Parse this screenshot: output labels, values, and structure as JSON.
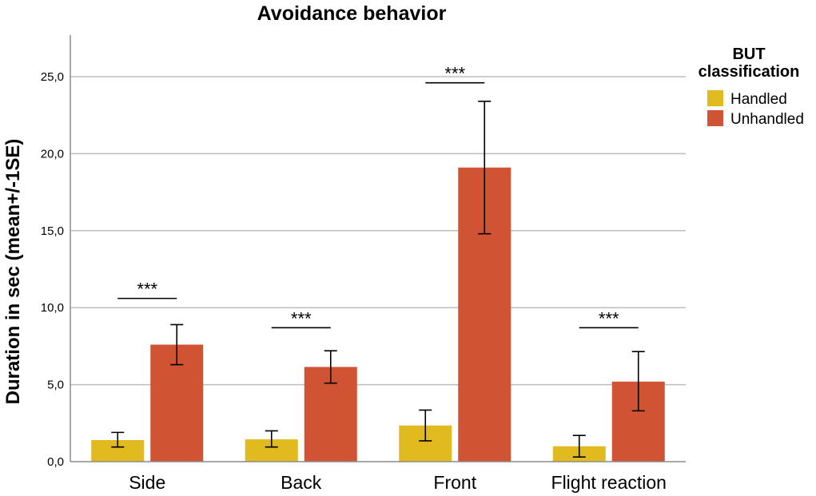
{
  "chart_data": {
    "type": "bar",
    "title": "Avoidance behavior",
    "xlabel": "",
    "ylabel": "Duration in sec (mean+/-1SE)",
    "ylim": [
      0,
      28
    ],
    "yticks": [
      {
        "value": 0,
        "label": "0,0"
      },
      {
        "value": 5,
        "label": "5,0"
      },
      {
        "value": 10,
        "label": "10,0"
      },
      {
        "value": 15,
        "label": "15,0"
      },
      {
        "value": 20,
        "label": "20,0"
      },
      {
        "value": 25,
        "label": "25,0"
      }
    ],
    "categories": [
      "Side",
      "Back",
      "Front",
      "Flight reaction"
    ],
    "series": [
      {
        "name": "Handled",
        "color": "#E0BA1F",
        "values": [
          1.4,
          1.45,
          2.35,
          1.0
        ],
        "err_low": [
          0.95,
          0.95,
          1.35,
          0.3
        ],
        "err_high": [
          1.9,
          2.0,
          3.35,
          1.7
        ]
      },
      {
        "name": "Unhandled",
        "color": "#D05434",
        "values": [
          7.6,
          6.15,
          19.1,
          5.2
        ],
        "err_low": [
          6.3,
          5.1,
          14.8,
          3.3
        ],
        "err_high": [
          8.9,
          7.2,
          23.4,
          7.15
        ]
      }
    ],
    "significance": [
      {
        "category": 0,
        "label": "***",
        "value": 10.6
      },
      {
        "category": 1,
        "label": "***",
        "value": 8.7
      },
      {
        "category": 2,
        "label": "***",
        "value": 24.6
      },
      {
        "category": 3,
        "label": "***",
        "value": 8.7
      }
    ],
    "legend": {
      "title_line1": "BUT",
      "title_line2": "classification",
      "position": "right"
    },
    "grid": true,
    "gridline_color": "#BDBDBD",
    "axis_color": "#8C8C8C"
  }
}
